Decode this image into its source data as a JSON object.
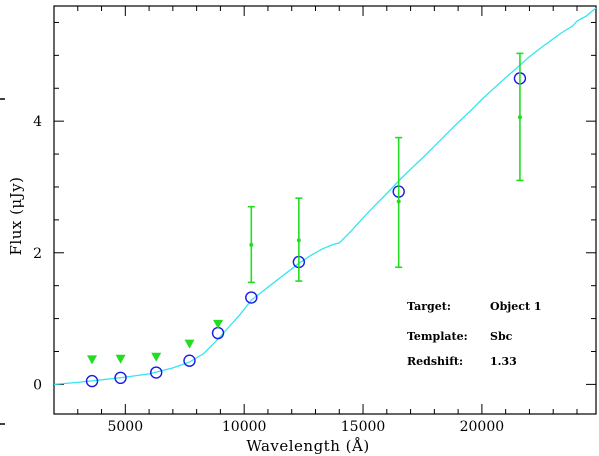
{
  "chart_data": {
    "type": "scatter",
    "xlabel": "Wavelength (Å)",
    "ylabel": "Flux (μJy)",
    "xlim": [
      2000,
      24800
    ],
    "ylim": [
      -0.45,
      5.75
    ],
    "x_ticks": [
      5000,
      10000,
      15000,
      20000
    ],
    "x_tick_labels": [
      "5000",
      "10000",
      "15000",
      "20000"
    ],
    "y_ticks": [
      0,
      2,
      4
    ],
    "y_tick_labels": [
      "0",
      "2",
      "4"
    ],
    "grid": false,
    "colors": {
      "template": "#33e6ee",
      "model_points": "#1a1ae6",
      "observed": "#22dd22",
      "axes": "#000000"
    },
    "series": [
      {
        "kind": "template_line",
        "x": [
          2000,
          3000,
          4000,
          5000,
          6000,
          7000,
          7700,
          8300,
          8800,
          9300,
          9800,
          10300,
          10800,
          11300,
          11800,
          12300,
          12800,
          13300,
          13700,
          14000,
          14500,
          15000,
          15500,
          16000,
          16500,
          17000,
          17500,
          18000,
          18500,
          19000,
          19500,
          20000,
          20500,
          21000,
          21500,
          22000,
          22500,
          23000,
          23300,
          23600,
          23800,
          24000,
          24200,
          24400,
          24600,
          24800
        ],
        "y": [
          0.0,
          0.03,
          0.07,
          0.11,
          0.16,
          0.25,
          0.34,
          0.47,
          0.65,
          0.85,
          1.05,
          1.28,
          1.42,
          1.56,
          1.7,
          1.84,
          1.96,
          2.06,
          2.12,
          2.15,
          2.33,
          2.53,
          2.72,
          2.9,
          3.09,
          3.27,
          3.44,
          3.62,
          3.8,
          3.98,
          4.15,
          4.33,
          4.5,
          4.66,
          4.82,
          4.98,
          5.12,
          5.25,
          5.33,
          5.4,
          5.44,
          5.52,
          5.56,
          5.6,
          5.66,
          5.72
        ]
      },
      {
        "kind": "model_points",
        "x": [
          3600,
          4800,
          6300,
          7700,
          8900,
          10300,
          12300,
          16500,
          21600
        ],
        "y": [
          0.05,
          0.1,
          0.18,
          0.36,
          0.78,
          1.32,
          1.86,
          2.93,
          4.65
        ]
      },
      {
        "kind": "upper_limits",
        "x": [
          3600,
          4800,
          6300,
          7700,
          8900
        ],
        "y": [
          0.38,
          0.39,
          0.42,
          0.62,
          0.92
        ]
      },
      {
        "kind": "observed_with_errors",
        "x": [
          10300,
          12300,
          16500,
          21600
        ],
        "y": [
          2.12,
          2.19,
          2.78,
          4.06
        ],
        "ylow": [
          1.55,
          1.57,
          1.78,
          3.1
        ],
        "yhigh": [
          2.7,
          2.83,
          3.75,
          5.03
        ]
      }
    ]
  },
  "info": {
    "target_label": "Target:",
    "target_value": "Object 1",
    "template_label": "Template:",
    "template_value": "Sbc",
    "redshift_label": "Redshift:",
    "redshift_value": "1.33"
  }
}
